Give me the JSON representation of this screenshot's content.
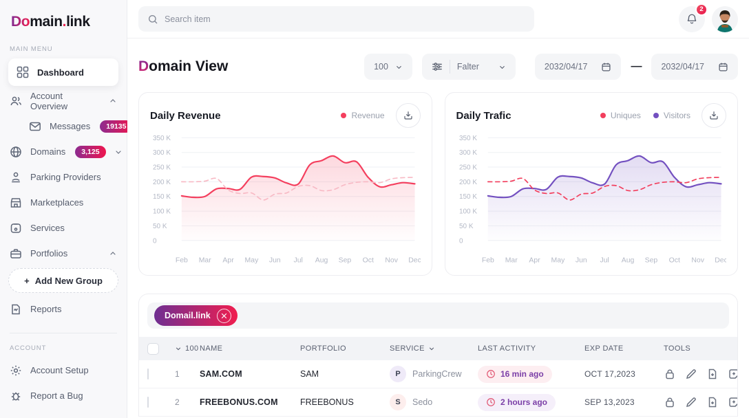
{
  "brand": {
    "logo_do": "Do",
    "logo_main": "main",
    "logo_dot": ".",
    "logo_link": "link"
  },
  "topbar": {
    "search_placeholder": "Search item",
    "notification_count": "2"
  },
  "sidebar": {
    "section_main": "MAIN MENU",
    "section_account": "ACCOUNT",
    "add_group_plus": "+",
    "items": [
      {
        "label": "Dashboard"
      },
      {
        "label": "Account Overview"
      },
      {
        "label": "Messages",
        "badge": "19135"
      },
      {
        "label": "Domains",
        "badge": "3,125"
      },
      {
        "label": "Parking Providers"
      },
      {
        "label": "Marketplaces"
      },
      {
        "label": "Services"
      },
      {
        "label": "Portfolios"
      },
      {
        "label": "Add New Group"
      },
      {
        "label": "Reports"
      },
      {
        "label": "Account Setup"
      },
      {
        "label": "Report a Bug"
      }
    ]
  },
  "header": {
    "title_accent": "D",
    "title_rest": "omain View"
  },
  "filters": {
    "page_size": "100",
    "filter_label": "Falter",
    "date_from": "2032/04/17",
    "date_to": "2032/04/17",
    "separator": "—"
  },
  "colors": {
    "accent_gradient_start": "#7E2A93",
    "accent_gradient_end": "#F01E4F",
    "revenue_line": "#F43F5E",
    "revenue_dashed": "#F8BAC5",
    "visitors_line": "#7350C0",
    "uniques_dashed": "#F23F5D",
    "activity_pill_pink": "#FDEEF1",
    "activity_pill_lavender": "#F5EFFA"
  },
  "chart_data": [
    {
      "type": "line",
      "title": "Daily Revenue",
      "categories": [
        "Feb",
        "Mar",
        "Apr",
        "May",
        "Jun",
        "Jul",
        "Aug",
        "Sep",
        "Oct",
        "Nov",
        "Dec"
      ],
      "ylim": [
        0,
        350
      ],
      "ytick_values": [
        350,
        300,
        250,
        200,
        150,
        100,
        50,
        0
      ],
      "ytick_labels": [
        "350 K",
        "300 K",
        "250 K",
        "200 K",
        "150 K",
        "100 K",
        "50 K",
        "0"
      ],
      "grid": true,
      "legend_position": "top-right",
      "legend": [
        {
          "label": "Revenue",
          "color": "#F43F5E"
        }
      ],
      "x_step_months": 0.5,
      "series": [
        {
          "name": "Revenue",
          "color": "#F43F5E",
          "dash": false,
          "area": true,
          "values": [
            152,
            147,
            150,
            176,
            177,
            174,
            216,
            218,
            213,
            196,
            192,
            258,
            272,
            288,
            265,
            268,
            215,
            183,
            190,
            197,
            193
          ]
        },
        {
          "name": "Revenue (dashed comparison)",
          "color": "#F8BAC5",
          "dash": true,
          "area": false,
          "values": [
            200,
            200,
            202,
            211,
            172,
            160,
            162,
            138,
            158,
            162,
            184,
            187,
            170,
            173,
            190,
            198,
            200,
            197,
            210,
            214,
            215
          ]
        }
      ]
    },
    {
      "type": "line",
      "title": "Daily Trafic",
      "categories": [
        "Feb",
        "Mar",
        "Apr",
        "May",
        "Jun",
        "Jul",
        "Aug",
        "Sep",
        "Oct",
        "Nov",
        "Dec"
      ],
      "ylim": [
        0,
        350
      ],
      "ytick_values": [
        350,
        300,
        250,
        200,
        150,
        100,
        50,
        0
      ],
      "ytick_labels": [
        "350 K",
        "300 K",
        "250 K",
        "200 K",
        "150 K",
        "100 K",
        "50 K",
        "0"
      ],
      "grid": true,
      "legend_position": "top-right",
      "legend": [
        {
          "label": "Uniques",
          "color": "#F23F5D"
        },
        {
          "label": "Visitors",
          "color": "#7350C0"
        }
      ],
      "x_step_months": 0.5,
      "series": [
        {
          "name": "Visitors",
          "color": "#7350C0",
          "dash": false,
          "area": true,
          "values": [
            152,
            147,
            150,
            176,
            177,
            174,
            216,
            218,
            213,
            196,
            192,
            258,
            272,
            288,
            265,
            268,
            215,
            183,
            190,
            197,
            193
          ]
        },
        {
          "name": "Uniques",
          "color": "#F23F5D",
          "dash": true,
          "area": false,
          "values": [
            200,
            200,
            202,
            211,
            172,
            160,
            162,
            138,
            158,
            162,
            184,
            187,
            170,
            173,
            190,
            198,
            200,
            197,
            210,
            214,
            215
          ]
        }
      ]
    }
  ],
  "table": {
    "tag": {
      "label": "Domail.link"
    },
    "columns": [
      "100",
      "NAME",
      "PORTFOLIO",
      "SERVICE",
      "LAST ACTIVITY",
      "EXP DATE",
      "TOOLS"
    ],
    "rows": [
      {
        "num": "1",
        "name": "SAM.COM",
        "portfolio": "SAM",
        "service_initial": "P",
        "service": "ParkingCrew",
        "service_badge_bg": "#EFEAF8",
        "activity": "16 min ago",
        "activity_bg": "#FDEEF1",
        "exp": "OCT 17,2023"
      },
      {
        "num": "2",
        "name": "FREEBONUS.COM",
        "portfolio": "FREEBONUS",
        "service_initial": "S",
        "service": "Sedo",
        "service_badge_bg": "#FDEEED",
        "activity": "2 hours ago",
        "activity_bg": "#F5EFFA",
        "exp": "SEP 13,2023"
      }
    ]
  }
}
